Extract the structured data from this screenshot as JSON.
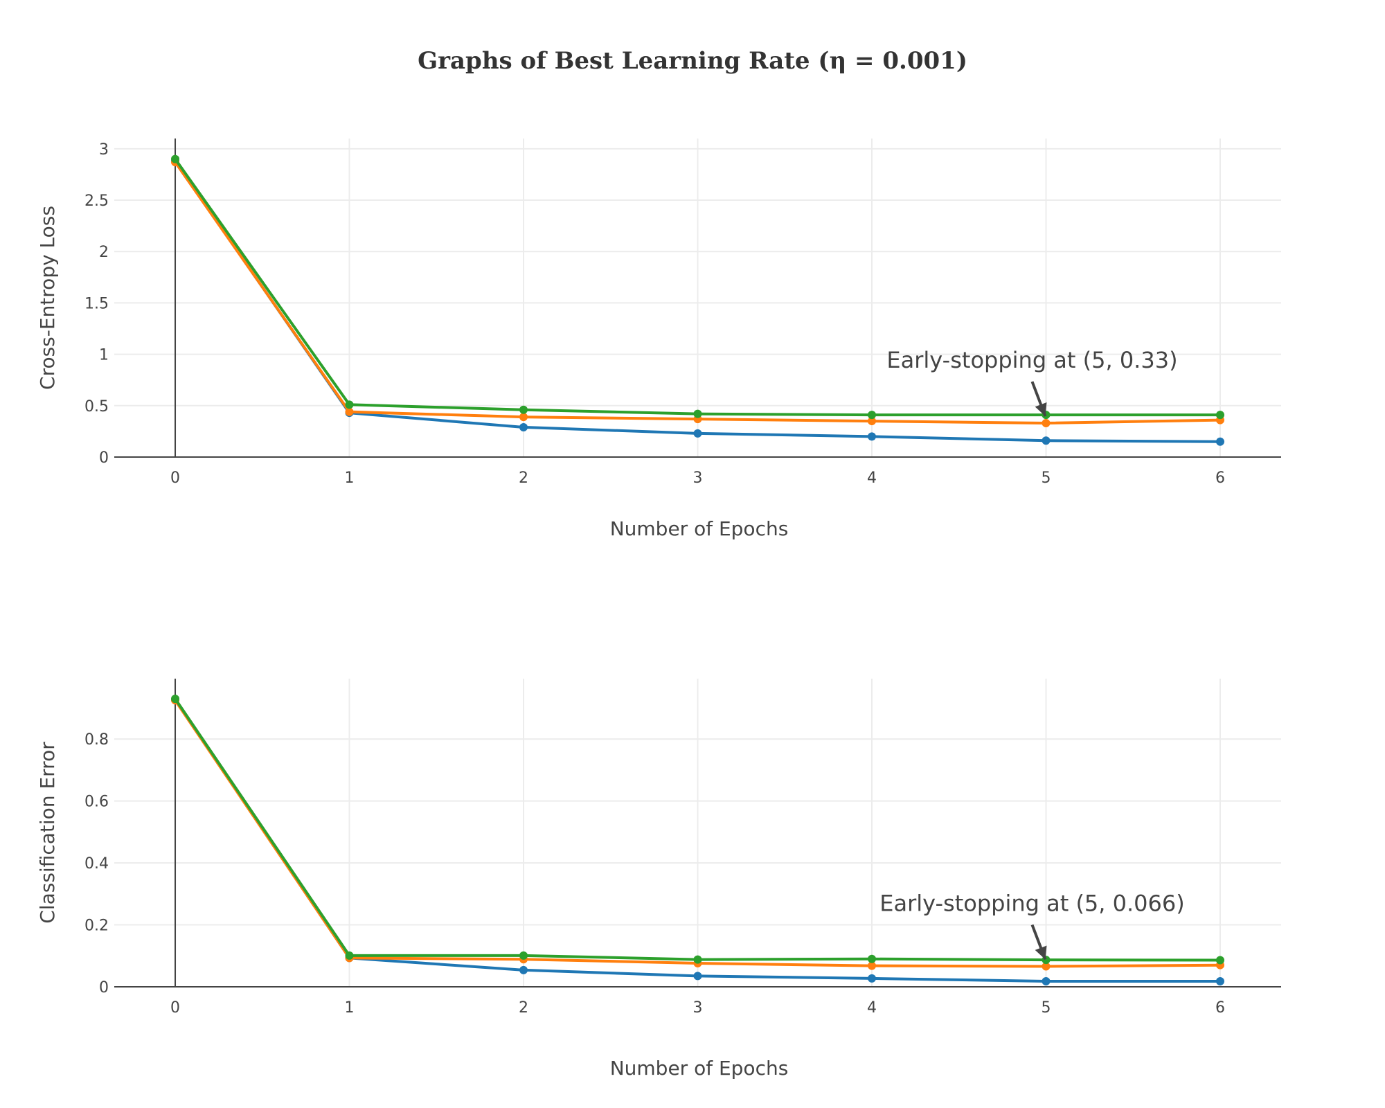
{
  "title": "Graphs of Best Learning Rate (η = 0.001)",
  "colors": {
    "blue": "#1f77b4",
    "orange": "#ff7f0e",
    "green": "#2ca02c",
    "axis": "#444444",
    "grid": "#ececec"
  },
  "chart_data": [
    {
      "type": "line",
      "xlabel": "Number of Epochs",
      "ylabel": "Cross-Entropy Loss",
      "xlim": [
        -0.35,
        6.35
      ],
      "ylim": [
        0,
        3.1
      ],
      "xticks": [
        "0",
        "1",
        "2",
        "3",
        "4",
        "5",
        "6"
      ],
      "yticks": [
        "0",
        "0.5",
        "1",
        "1.5",
        "2",
        "2.5",
        "3"
      ],
      "x": [
        0,
        1,
        2,
        3,
        4,
        5,
        6
      ],
      "series": [
        {
          "color": "#1f77b4",
          "values": [
            2.88,
            0.43,
            0.29,
            0.23,
            0.2,
            0.16,
            0.15
          ]
        },
        {
          "color": "#ff7f0e",
          "values": [
            2.87,
            0.44,
            0.39,
            0.37,
            0.35,
            0.33,
            0.36
          ]
        },
        {
          "color": "#2ca02c",
          "values": [
            2.9,
            0.51,
            0.46,
            0.42,
            0.41,
            0.41,
            0.41
          ]
        }
      ],
      "annotation": {
        "text": "Early-stopping at (5, 0.33)",
        "x": 5,
        "y": 0.33
      },
      "grid": true
    },
    {
      "type": "line",
      "xlabel": "Number of Epochs",
      "ylabel": "Classification Error",
      "xlim": [
        -0.35,
        6.35
      ],
      "ylim": [
        0,
        0.995
      ],
      "xticks": [
        "0",
        "1",
        "2",
        "3",
        "4",
        "5",
        "6"
      ],
      "yticks": [
        "0",
        "0.2",
        "0.4",
        "0.6",
        "0.8"
      ],
      "x": [
        0,
        1,
        2,
        3,
        4,
        5,
        6
      ],
      "series": [
        {
          "color": "#1f77b4",
          "values": [
            0.928,
            0.093,
            0.054,
            0.035,
            0.027,
            0.018,
            0.018
          ]
        },
        {
          "color": "#ff7f0e",
          "values": [
            0.925,
            0.093,
            0.089,
            0.076,
            0.068,
            0.066,
            0.07
          ]
        },
        {
          "color": "#2ca02c",
          "values": [
            0.93,
            0.101,
            0.101,
            0.088,
            0.09,
            0.087,
            0.086
          ]
        }
      ],
      "annotation": {
        "text": "Early-stopping at (5, 0.066)",
        "x": 5,
        "y": 0.066
      },
      "grid": true
    }
  ]
}
